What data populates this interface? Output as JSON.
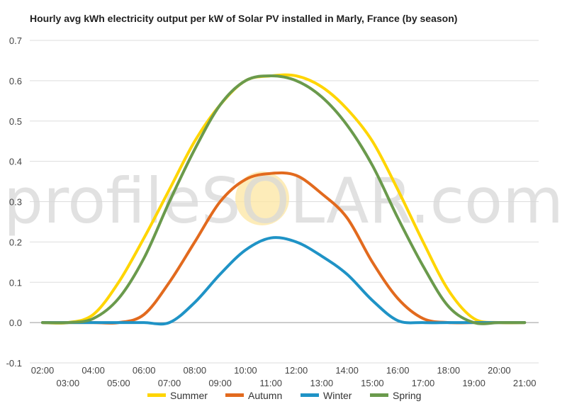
{
  "chart_data": {
    "type": "line",
    "title": "Hourly avg kWh electricity output per kW of Solar PV installed in Marly, France (by season)",
    "xlabel": "",
    "ylabel": "",
    "ylim": [
      -0.1,
      0.7
    ],
    "yticks": [
      "-0.1",
      "0.0",
      "0.1",
      "0.2",
      "0.3",
      "0.4",
      "0.5",
      "0.6",
      "0.7"
    ],
    "x": [
      "02:00",
      "03:00",
      "04:00",
      "05:00",
      "06:00",
      "07:00",
      "08:00",
      "09:00",
      "10:00",
      "11:00",
      "12:00",
      "13:00",
      "14:00",
      "15:00",
      "16:00",
      "17:00",
      "18:00",
      "19:00",
      "20:00",
      "21:00"
    ],
    "grid": true,
    "legend_position": "bottom",
    "series": [
      {
        "name": "Summer",
        "color": "#FFD500",
        "values": [
          0.0,
          0.0,
          0.02,
          0.1,
          0.21,
          0.33,
          0.45,
          0.54,
          0.6,
          0.612,
          0.612,
          0.585,
          0.53,
          0.45,
          0.33,
          0.2,
          0.08,
          0.01,
          0.0,
          0.0
        ]
      },
      {
        "name": "Autumn",
        "color": "#E26A1E",
        "values": [
          0.0,
          0.0,
          0.0,
          0.0,
          0.02,
          0.1,
          0.2,
          0.3,
          0.355,
          0.37,
          0.365,
          0.32,
          0.26,
          0.15,
          0.06,
          0.01,
          0.0,
          0.0,
          0.0,
          0.0
        ]
      },
      {
        "name": "Winter",
        "color": "#1F93C6",
        "values": [
          0.0,
          0.0,
          0.0,
          0.0,
          0.0,
          0.0,
          0.05,
          0.12,
          0.18,
          0.21,
          0.2,
          0.165,
          0.12,
          0.055,
          0.005,
          0.0,
          0.0,
          0.0,
          0.0,
          0.0
        ]
      },
      {
        "name": "Spring",
        "color": "#6A9A4C",
        "values": [
          0.0,
          0.0,
          0.01,
          0.06,
          0.16,
          0.3,
          0.43,
          0.54,
          0.6,
          0.612,
          0.6,
          0.56,
          0.49,
          0.39,
          0.26,
          0.14,
          0.04,
          0.0,
          0.0,
          0.0
        ]
      }
    ]
  },
  "watermark": {
    "text": "profileSOLAR.com",
    "sun_color": "#FCE7A8"
  }
}
